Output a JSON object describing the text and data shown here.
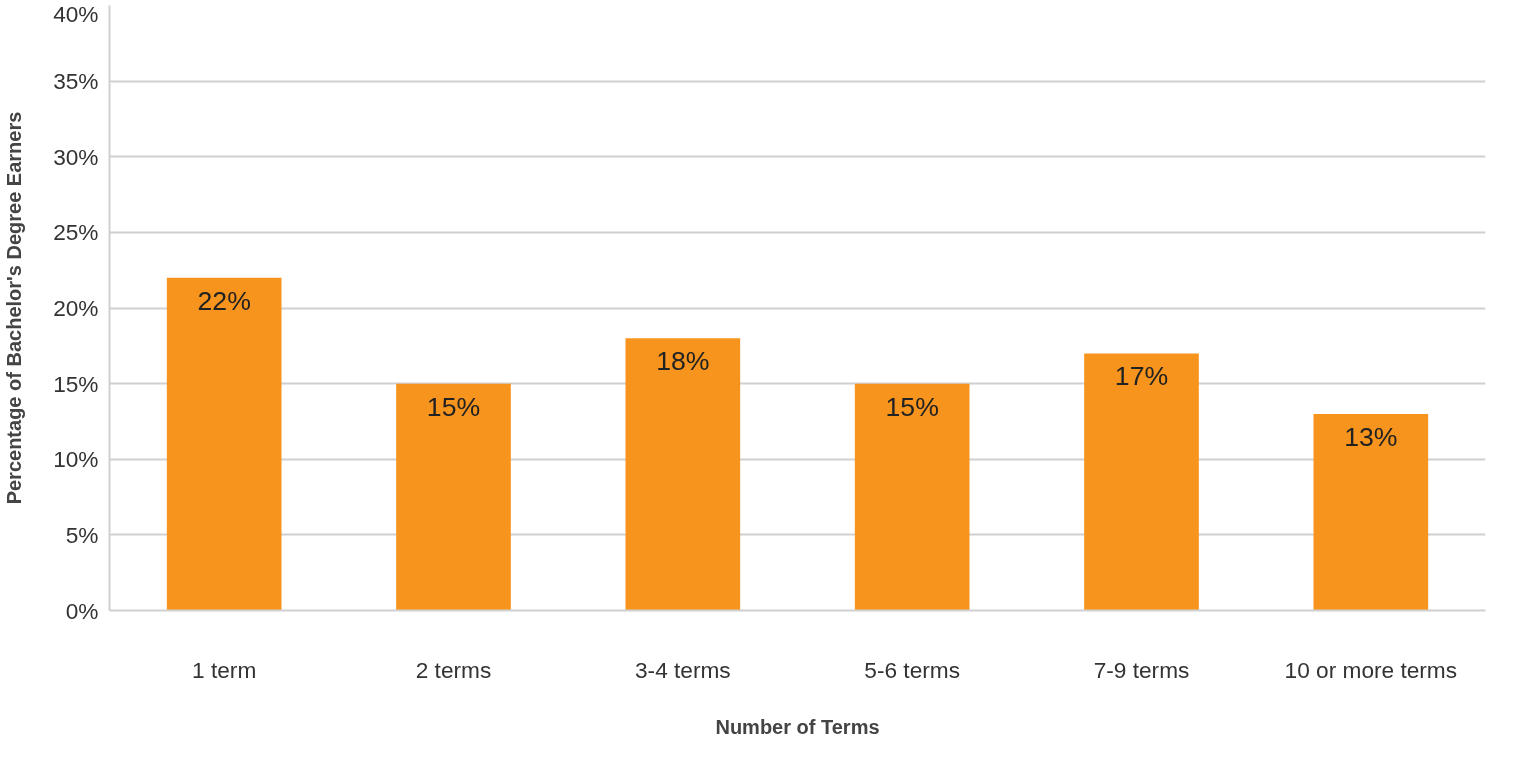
{
  "chart_data": {
    "type": "bar",
    "xlabel": "Number of Terms",
    "ylabel": "Percentage of Bachelor's Degree Earners",
    "categories": [
      "1 term",
      "2 terms",
      "3-4 terms",
      "5-6 terms",
      "7-9 terms",
      "10 or more terms"
    ],
    "values": [
      22,
      15,
      18,
      15,
      17,
      13
    ],
    "color": "#f7941d",
    "data_labels": true,
    "value_labels": [
      "22%",
      "15%",
      "18%",
      "15%",
      "17%",
      "13%"
    ],
    "ylim": [
      0,
      40
    ],
    "yticks": [
      {
        "value": 0,
        "label": "0%"
      },
      {
        "value": 5,
        "label": "5%"
      },
      {
        "value": 10,
        "label": "10%"
      },
      {
        "value": 15,
        "label": "15%"
      },
      {
        "value": 20,
        "label": "20%"
      },
      {
        "value": 25,
        "label": "25%"
      },
      {
        "value": 30,
        "label": "30%"
      },
      {
        "value": 35,
        "label": "35%"
      },
      {
        "value": 40,
        "label": "40%"
      }
    ],
    "grid": "y"
  }
}
